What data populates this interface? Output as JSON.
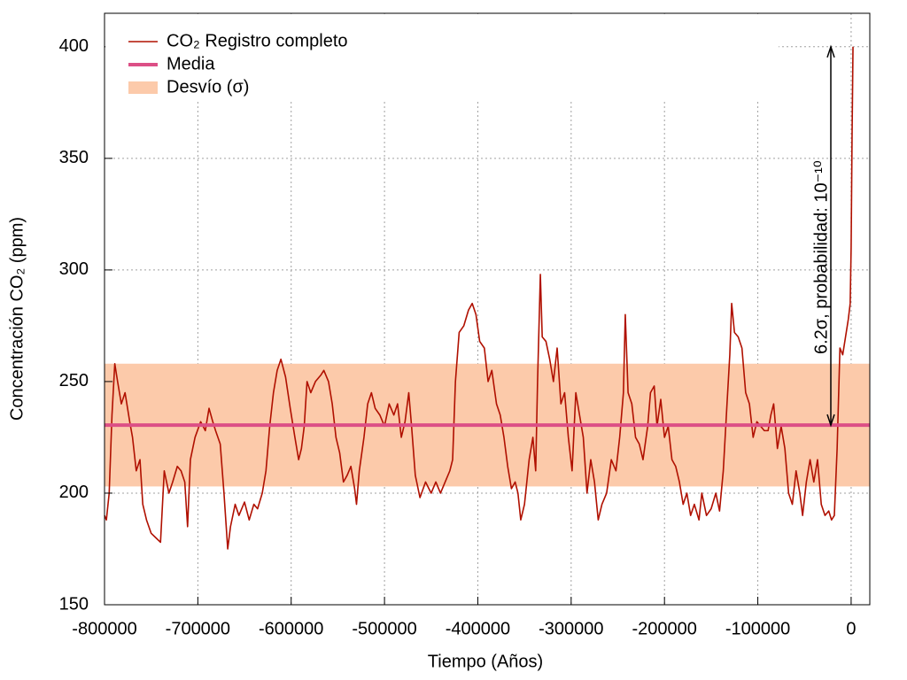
{
  "chart_data": {
    "type": "line",
    "xlabel": "Tiempo (Años)",
    "ylabel": "Concentración CO₂ (ppm)",
    "xlim": [
      -800000,
      20000
    ],
    "ylim": [
      150,
      415
    ],
    "xticks": [
      -800000,
      -700000,
      -600000,
      -500000,
      -400000,
      -300000,
      -200000,
      -100000,
      0
    ],
    "yticks": [
      150,
      200,
      250,
      300,
      350,
      400
    ],
    "grid": true,
    "legend": "top-left",
    "annotation": "6.2σ, probabilidad: 10⁻¹⁰",
    "series": [
      {
        "name": "CO₂ Registro completo",
        "color": "#b01000",
        "x": [
          -800000,
          -798000,
          -795000,
          -792000,
          -789000,
          -786000,
          -782000,
          -778000,
          -773000,
          -770000,
          -766000,
          -762000,
          -759000,
          -755000,
          -750000,
          -745000,
          -740000,
          -736000,
          -731000,
          -727000,
          -722000,
          -718000,
          -714000,
          -711000,
          -708000,
          -703000,
          -697000,
          -692000,
          -688000,
          -684000,
          -681000,
          -676000,
          -672000,
          -668000,
          -665000,
          -660000,
          -656000,
          -650000,
          -645000,
          -640000,
          -636000,
          -631000,
          -627000,
          -623000,
          -619000,
          -615000,
          -611000,
          -606000,
          -601000,
          -596000,
          -592000,
          -589000,
          -586000,
          -583000,
          -579000,
          -574000,
          -568000,
          -565000,
          -560000,
          -556000,
          -552000,
          -548000,
          -544000,
          -540000,
          -536000,
          -532000,
          -530000,
          -527000,
          -522000,
          -518000,
          -514000,
          -510000,
          -505000,
          -500000,
          -495000,
          -490000,
          -486000,
          -482000,
          -478000,
          -474000,
          -471000,
          -467000,
          -462000,
          -456000,
          -450000,
          -445000,
          -440000,
          -435000,
          -430000,
          -427000,
          -424000,
          -420000,
          -415000,
          -410000,
          -406000,
          -402000,
          -398000,
          -393000,
          -389000,
          -385000,
          -380000,
          -376000,
          -372000,
          -368000,
          -364000,
          -360000,
          -357000,
          -354000,
          -350000,
          -345000,
          -341000,
          -338000,
          -336000,
          -333000,
          -331000,
          -327000,
          -323000,
          -319000,
          -315000,
          -311000,
          -307000,
          -303000,
          -299000,
          -295000,
          -291000,
          -287000,
          -283000,
          -279000,
          -275000,
          -271000,
          -267000,
          -262000,
          -257000,
          -252000,
          -248000,
          -244000,
          -242000,
          -239000,
          -235000,
          -231000,
          -227000,
          -223000,
          -218000,
          -215000,
          -211000,
          -208000,
          -204000,
          -200000,
          -196000,
          -192000,
          -188000,
          -184000,
          -180000,
          -176000,
          -172000,
          -168000,
          -163000,
          -160000,
          -155000,
          -150000,
          -145000,
          -141000,
          -137000,
          -133000,
          -130000,
          -128000,
          -125000,
          -121000,
          -117000,
          -113000,
          -109000,
          -105000,
          -101000,
          -97000,
          -93000,
          -89000,
          -86000,
          -83000,
          -79000,
          -75000,
          -71000,
          -67000,
          -63000,
          -59000,
          -55000,
          -52000,
          -48000,
          -44000,
          -40000,
          -36000,
          -32000,
          -28000,
          -24000,
          -21000,
          -18000,
          -15000,
          -12000,
          -9000,
          -6000,
          -3000,
          -1000,
          0,
          1000,
          2000
        ],
        "values": [
          190,
          188,
          200,
          235,
          258,
          250,
          240,
          245,
          232,
          225,
          210,
          215,
          195,
          188,
          182,
          180,
          178,
          210,
          200,
          205,
          212,
          210,
          205,
          185,
          215,
          225,
          232,
          228,
          238,
          232,
          228,
          222,
          200,
          175,
          185,
          195,
          190,
          196,
          188,
          195,
          193,
          200,
          210,
          230,
          245,
          255,
          260,
          252,
          238,
          225,
          215,
          220,
          230,
          250,
          245,
          250,
          253,
          255,
          250,
          240,
          225,
          218,
          205,
          208,
          212,
          202,
          195,
          210,
          225,
          240,
          245,
          238,
          235,
          230,
          240,
          235,
          240,
          225,
          232,
          245,
          230,
          208,
          198,
          205,
          200,
          205,
          200,
          205,
          210,
          215,
          250,
          272,
          275,
          282,
          285,
          280,
          268,
          265,
          250,
          255,
          240,
          235,
          225,
          212,
          202,
          205,
          200,
          188,
          195,
          215,
          225,
          210,
          250,
          298,
          270,
          268,
          260,
          250,
          265,
          240,
          245,
          225,
          210,
          245,
          235,
          225,
          200,
          215,
          205,
          188,
          195,
          200,
          215,
          210,
          225,
          245,
          280,
          245,
          240,
          225,
          222,
          215,
          230,
          245,
          248,
          230,
          242,
          225,
          230,
          215,
          212,
          205,
          195,
          200,
          190,
          195,
          188,
          200,
          190,
          193,
          200,
          192,
          210,
          240,
          262,
          285,
          272,
          270,
          265,
          245,
          240,
          225,
          232,
          230,
          228,
          228,
          235,
          240,
          220,
          230,
          220,
          200,
          195,
          210,
          200,
          190,
          205,
          215,
          205,
          215,
          195,
          190,
          192,
          188,
          190,
          220,
          265,
          262,
          270,
          278,
          285,
          310,
          360,
          400
        ]
      }
    ],
    "mean": {
      "name": "Media",
      "color": "#dc4f86",
      "value": 230.5
    },
    "band": {
      "name": "Desvío (σ)",
      "color": "#fccaaa",
      "low": 203,
      "high": 258
    }
  }
}
